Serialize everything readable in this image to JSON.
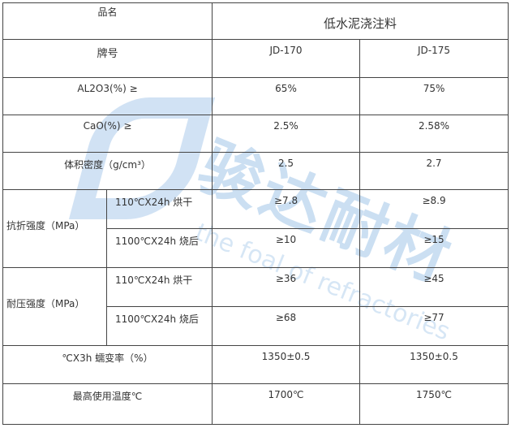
{
  "watermark": {
    "brand": "骏达耐材",
    "slogan": "the foal of refractories",
    "color": "#468cd2"
  },
  "table": {
    "product_label": "品名",
    "product_name": "低水泥浇注料",
    "grade_label": "牌号",
    "grades": [
      "JD-170",
      "JD-175"
    ],
    "rows": [
      {
        "label": "AL2O3(%) ≥",
        "values": [
          "65%",
          "75%"
        ]
      },
      {
        "label": "CaO(%) ≥",
        "values": [
          "2.5%",
          "2.58%"
        ]
      },
      {
        "label": "体积密度（g/cm³）",
        "values": [
          "2.5",
          "2.7"
        ]
      }
    ],
    "flexural": {
      "label": "抗折强度（MPa）",
      "sub": [
        {
          "cond": "110℃X24h  烘干",
          "values": [
            "≥7.8",
            "≥8.9"
          ]
        },
        {
          "cond": "1100℃X24h 烧后",
          "values": [
            "≥10",
            "≥15"
          ]
        }
      ]
    },
    "compressive": {
      "label": "耐压强度（MPa）",
      "sub": [
        {
          "cond": "110℃X24h  烘干",
          "values": [
            "≥36",
            "≥45"
          ]
        },
        {
          "cond": "1100℃X24h 烧后",
          "values": [
            "≥68",
            "≥77"
          ]
        }
      ]
    },
    "creep": {
      "label": "℃X3h 蠕变率（%）",
      "values": [
        "1350±0.5",
        "1350±0.5"
      ]
    },
    "max_temp": {
      "label": "最高使用温度℃",
      "values": [
        "1700℃",
        "1750℃"
      ]
    }
  }
}
